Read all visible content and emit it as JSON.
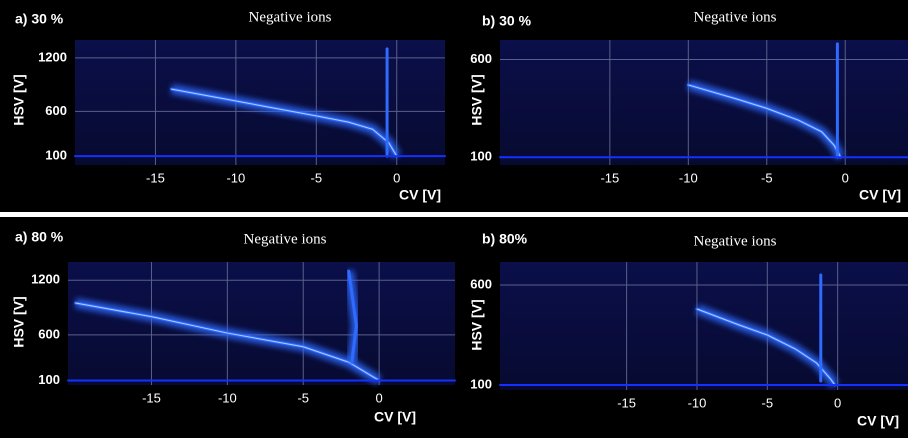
{
  "chart_data": [
    {
      "type": "line",
      "panel_label": "a) 30 %",
      "title": "Negative ions",
      "xlabel": "CV [V]",
      "ylabel": "HSV [V]",
      "xlim": [
        -20,
        3
      ],
      "xticks": [
        -15,
        -10,
        -5,
        0
      ],
      "ylim": [
        0,
        1400
      ],
      "yticks": [
        100,
        600,
        1200
      ],
      "grid": true,
      "series": [
        {
          "color": "#2f6bff",
          "x": [
            -14,
            -11,
            -8,
            -5,
            -3,
            -1.5,
            -0.5,
            0
          ],
          "values": [
            850,
            750,
            650,
            550,
            480,
            400,
            250,
            100
          ]
        },
        {
          "color": "#2f6bff",
          "x": [
            -0.6,
            -0.6
          ],
          "values": [
            100,
            1300
          ]
        },
        {
          "color": "#1530ff",
          "x": [
            -20,
            3
          ],
          "values": [
            100,
            100
          ]
        }
      ]
    },
    {
      "type": "line",
      "panel_label": "b) 30 %",
      "title": "Negative ions",
      "xlabel": "CV [V]",
      "ylabel": "HSV [V]",
      "xlim": [
        -22,
        4
      ],
      "xticks": [
        -15,
        -10,
        -5,
        0
      ],
      "ylim": [
        60,
        700
      ],
      "yticks": [
        100,
        600
      ],
      "grid": true,
      "series": [
        {
          "color": "#2f6bff",
          "x": [
            -10,
            -7,
            -5,
            -3,
            -1.5,
            -0.7,
            -0.3
          ],
          "values": [
            470,
            400,
            350,
            290,
            230,
            160,
            100
          ]
        },
        {
          "color": "#2f6bff",
          "x": [
            -0.5,
            -0.5
          ],
          "values": [
            100,
            680
          ]
        },
        {
          "color": "#1530ff",
          "x": [
            -22,
            4
          ],
          "values": [
            100,
            100
          ]
        }
      ]
    },
    {
      "type": "line",
      "panel_label": "a) 80 %",
      "title": "Negative ions",
      "xlabel": "CV [V]",
      "ylabel": "HSV [V]",
      "xlim": [
        -20.5,
        5
      ],
      "xticks": [
        -15,
        -10,
        -5,
        0
      ],
      "ylim": [
        50,
        1400
      ],
      "yticks": [
        100,
        600,
        1200
      ],
      "grid": true,
      "series": [
        {
          "color": "#2f6bff",
          "x": [
            -20,
            -15,
            -10,
            -5,
            -2,
            -0.5,
            0
          ],
          "values": [
            950,
            800,
            620,
            470,
            300,
            150,
            100
          ]
        },
        {
          "color": "#2f6bff",
          "x": [
            -2,
            -1.5,
            -1.8
          ],
          "values": [
            1300,
            700,
            300
          ]
        },
        {
          "color": "#1530ff",
          "x": [
            -20.5,
            5
          ],
          "values": [
            100,
            100
          ]
        }
      ]
    },
    {
      "type": "line",
      "panel_label": "b) 80%",
      "title": "Negative ions",
      "xlabel": "CV [V]",
      "ylabel": "HSV [V]",
      "xlim": [
        -24,
        5
      ],
      "xticks": [
        -15,
        -10,
        -5,
        0
      ],
      "ylim": [
        75,
        715
      ],
      "yticks": [
        100,
        600
      ],
      "grid": true,
      "series": [
        {
          "color": "#2f6bff",
          "x": [
            -10,
            -7,
            -5,
            -3,
            -1.5,
            -0.5,
            -0.2
          ],
          "values": [
            480,
            400,
            350,
            280,
            210,
            130,
            100
          ]
        },
        {
          "color": "#2f6bff",
          "x": [
            -1.2,
            -1.2
          ],
          "values": [
            120,
            650
          ]
        },
        {
          "color": "#1530ff",
          "x": [
            -24,
            5
          ],
          "values": [
            100,
            100
          ]
        }
      ]
    }
  ]
}
